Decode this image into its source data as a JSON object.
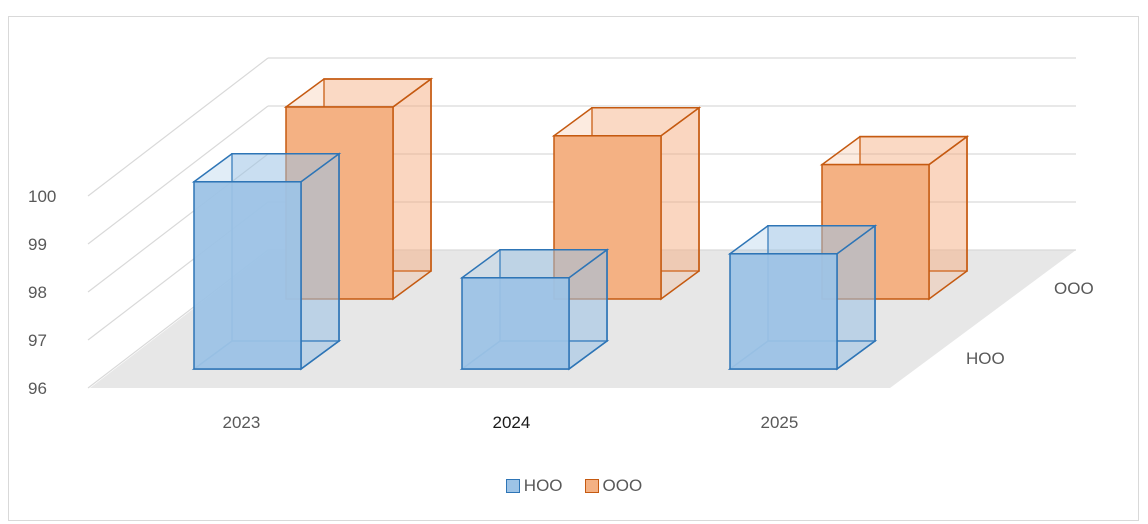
{
  "chart_data": {
    "type": "bar",
    "subtype": "3d-column",
    "title": "",
    "categories": [
      "2023",
      "2024",
      "2025"
    ],
    "series": [
      {
        "name": "HOO",
        "values": [
          99.9,
          97.9,
          98.4
        ],
        "color": "#9dc3e6",
        "edge": "#2e75b6"
      },
      {
        "name": "OOO",
        "values": [
          100.0,
          99.4,
          98.8
        ],
        "color": "#f4b183",
        "edge": "#c55a11"
      }
    ],
    "ylim": [
      96,
      100
    ],
    "yticks": [
      "96",
      "97",
      "98",
      "99",
      "100"
    ],
    "grid": true,
    "legend": "bottom",
    "highlighted_category": "2024"
  }
}
